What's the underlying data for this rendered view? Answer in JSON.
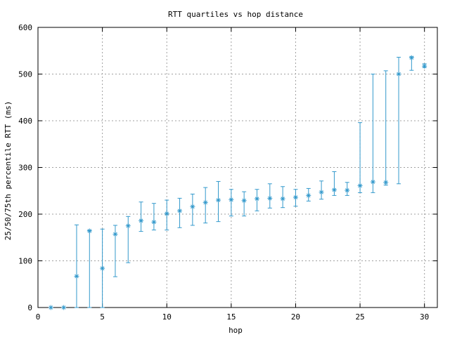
{
  "chart_data": {
    "type": "scatter",
    "title": "RTT quartiles vs hop distance",
    "xlabel": "hop",
    "ylabel": "25/50/75th percentile RTT (ms)",
    "xlim": [
      0,
      31
    ],
    "ylim": [
      0,
      600
    ],
    "xticks": [
      0,
      5,
      10,
      15,
      20,
      25,
      30
    ],
    "yticks": [
      0,
      100,
      200,
      300,
      400,
      500,
      600
    ],
    "grid": true,
    "series": [
      {
        "color": "#3399cc",
        "marker": "asterisk",
        "points": [
          {
            "hop": 1,
            "p25": 0,
            "median": 0,
            "p75": 0
          },
          {
            "hop": 2,
            "p25": 0,
            "median": 0,
            "p75": 0
          },
          {
            "hop": 3,
            "p25": 0,
            "median": 67,
            "p75": 177
          },
          {
            "hop": 4,
            "p25": 0,
            "median": 164,
            "p75": 165
          },
          {
            "hop": 5,
            "p25": 0,
            "median": 84,
            "p75": 168
          },
          {
            "hop": 6,
            "p25": 66,
            "median": 157,
            "p75": 176
          },
          {
            "hop": 7,
            "p25": 96,
            "median": 175,
            "p75": 195
          },
          {
            "hop": 8,
            "p25": 163,
            "median": 186,
            "p75": 226
          },
          {
            "hop": 9,
            "p25": 166,
            "median": 183,
            "p75": 223
          },
          {
            "hop": 10,
            "p25": 166,
            "median": 201,
            "p75": 230
          },
          {
            "hop": 11,
            "p25": 171,
            "median": 207,
            "p75": 234
          },
          {
            "hop": 12,
            "p25": 176,
            "median": 216,
            "p75": 243
          },
          {
            "hop": 13,
            "p25": 181,
            "median": 225,
            "p75": 257
          },
          {
            "hop": 14,
            "p25": 184,
            "median": 230,
            "p75": 270
          },
          {
            "hop": 15,
            "p25": 196,
            "median": 231,
            "p75": 253
          },
          {
            "hop": 16,
            "p25": 196,
            "median": 229,
            "p75": 248
          },
          {
            "hop": 17,
            "p25": 207,
            "median": 233,
            "p75": 253
          },
          {
            "hop": 18,
            "p25": 213,
            "median": 234,
            "p75": 265
          },
          {
            "hop": 19,
            "p25": 214,
            "median": 233,
            "p75": 259
          },
          {
            "hop": 20,
            "p25": 217,
            "median": 236,
            "p75": 253
          },
          {
            "hop": 21,
            "p25": 228,
            "median": 240,
            "p75": 255
          },
          {
            "hop": 22,
            "p25": 232,
            "median": 247,
            "p75": 271
          },
          {
            "hop": 23,
            "p25": 240,
            "median": 252,
            "p75": 291
          },
          {
            "hop": 24,
            "p25": 240,
            "median": 251,
            "p75": 268
          },
          {
            "hop": 25,
            "p25": 246,
            "median": 261,
            "p75": 396
          },
          {
            "hop": 26,
            "p25": 246,
            "median": 269,
            "p75": 500
          },
          {
            "hop": 27,
            "p25": 262,
            "median": 268,
            "p75": 507
          },
          {
            "hop": 28,
            "p25": 265,
            "median": 500,
            "p75": 536
          },
          {
            "hop": 29,
            "p25": 508,
            "median": 535,
            "p75": 537
          },
          {
            "hop": 30,
            "p25": 514,
            "median": 517,
            "p75": 522
          }
        ]
      }
    ]
  }
}
